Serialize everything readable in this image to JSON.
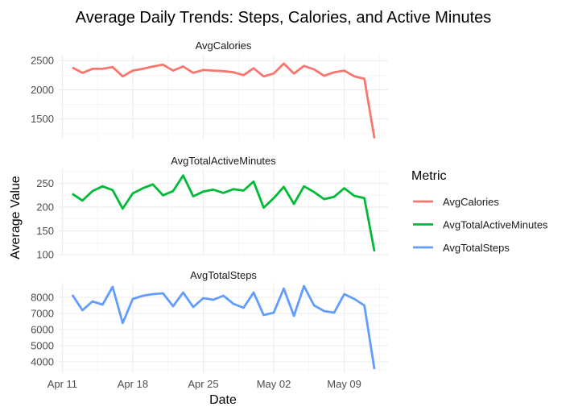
{
  "chart_data": {
    "type": "line",
    "title": "Average Daily Trends: Steps, Calories, and Active Minutes",
    "xlabel": "Date",
    "ylabel": "Average Value",
    "legend_title": "Metric",
    "legend_position": "right",
    "grid": true,
    "x_start": "2016-04-12",
    "x_end": "2016-05-12",
    "x_ticks": [
      {
        "date": "2016-04-11",
        "label": "Apr 11"
      },
      {
        "date": "2016-04-18",
        "label": "Apr 18"
      },
      {
        "date": "2016-04-25",
        "label": "Apr 25"
      },
      {
        "date": "2016-05-02",
        "label": "May 02"
      },
      {
        "date": "2016-05-09",
        "label": "May 09"
      }
    ],
    "panels": [
      {
        "strip": "AvgCalories",
        "series": "AvgCalories",
        "ylim": [
          1150,
          2600
        ],
        "yticks": [
          1500,
          2000,
          2500
        ],
        "ytick_labels": [
          "1500",
          "2000",
          "2500"
        ]
      },
      {
        "strip": "AvgTotalActiveMinutes",
        "series": "AvgTotalActiveMinutes",
        "ylim": [
          100,
          280
        ],
        "yticks": [
          100,
          150,
          200,
          250
        ],
        "ytick_labels": [
          "100",
          "150",
          "200",
          "250"
        ]
      },
      {
        "strip": "AvgTotalSteps",
        "series": "AvgTotalSteps",
        "ylim": [
          3300,
          8900
        ],
        "yticks": [
          4000,
          5000,
          6000,
          7000,
          8000
        ],
        "ytick_labels": [
          "4000",
          "5000",
          "6000",
          "7000",
          "8000"
        ]
      }
    ],
    "series": [
      {
        "name": "AvgCalories",
        "color": "#F8766D",
        "values": [
          2380,
          2290,
          2360,
          2360,
          2390,
          2230,
          2330,
          2360,
          2400,
          2430,
          2330,
          2400,
          2290,
          2340,
          2330,
          2320,
          2300,
          2250,
          2370,
          2230,
          2280,
          2450,
          2280,
          2410,
          2350,
          2240,
          2300,
          2330,
          2230,
          2190,
          1170
        ]
      },
      {
        "name": "AvgTotalActiveMinutes",
        "color": "#00BA38",
        "values": [
          228,
          214,
          234,
          244,
          236,
          197,
          229,
          240,
          248,
          225,
          234,
          267,
          223,
          233,
          237,
          230,
          238,
          235,
          254,
          199,
          219,
          243,
          207,
          244,
          232,
          217,
          222,
          240,
          224,
          219,
          107
        ]
      },
      {
        "name": "AvgTotalSteps",
        "color": "#619CFF",
        "values": [
          8150,
          7200,
          7750,
          7550,
          8650,
          6400,
          7900,
          8100,
          8200,
          8250,
          7450,
          8300,
          7400,
          7950,
          7850,
          8100,
          7600,
          7350,
          8300,
          6900,
          7050,
          8550,
          6850,
          8700,
          7500,
          7150,
          7050,
          8200,
          7900,
          7500,
          3550
        ]
      }
    ]
  }
}
